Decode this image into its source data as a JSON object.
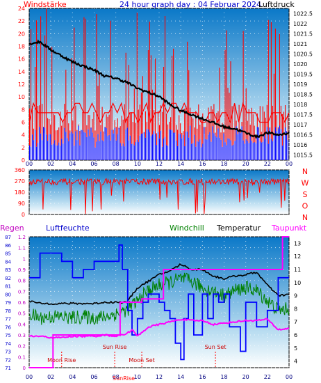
{
  "header": {
    "left": "Windstärke",
    "center": "24 hour graph day : 04 Februar 2024",
    "right": "Luftdruck"
  },
  "colors": {
    "wind": "#ff0000",
    "gust_blue": "#0000ff",
    "pressure": "#000000",
    "humidity": "#0000ff",
    "windchill": "#008000",
    "temperature": "#000000",
    "dewpoint": "#ff00ff",
    "rain": "#ff00ff",
    "panel_top": "#0a78c8",
    "panel_bottom": "#ffffff",
    "red_text": "#ff0000",
    "purple_text": "#c000c0"
  },
  "chart_data": [
    {
      "type": "line",
      "id": "wind-pressure",
      "title": "24 hour graph day : 04 Februar 2024",
      "x_ticks": [
        "00",
        "02",
        "04",
        "06",
        "08",
        "10",
        "12",
        "14",
        "16",
        "18",
        "20",
        "22",
        "00"
      ],
      "left_axis": {
        "label": "Windstärke",
        "ticks": [
          "0",
          "2",
          "4",
          "6",
          "8",
          "10",
          "12",
          "14",
          "16",
          "18",
          "20",
          "22",
          "24"
        ],
        "range": [
          0,
          24
        ]
      },
      "right_axis": {
        "label": "Luftdruck",
        "ticks": [
          "1015.5",
          "1016",
          "1016.5",
          "1017",
          "1017.5",
          "1018",
          "1018.5",
          "1019",
          "1019.5",
          "1020",
          "1020.5",
          "1021",
          "1021.5",
          "1022",
          "1022.5"
        ],
        "range": [
          1015.25,
          1022.75
        ]
      },
      "series": [
        {
          "name": "Luftdruck",
          "axis": "right",
          "x": [
            0,
            1,
            2,
            3,
            4,
            5,
            6,
            7,
            8,
            9,
            10,
            11,
            12,
            13,
            14,
            15,
            16,
            17,
            18,
            19,
            20,
            21,
            22,
            23,
            24
          ],
          "values": [
            1021.0,
            1021.1,
            1020.7,
            1020.4,
            1020.1,
            1019.9,
            1019.7,
            1019.4,
            1019.3,
            1019.1,
            1018.8,
            1018.6,
            1018.4,
            1018.0,
            1017.7,
            1017.5,
            1017.3,
            1017.1,
            1016.9,
            1016.8,
            1016.6,
            1016.4,
            1016.6,
            1016.5,
            1016.6
          ]
        }
      ],
      "wind_typical": [
        4,
        9
      ],
      "gust_max": 24
    },
    {
      "type": "line",
      "id": "wind-direction",
      "left_axis": {
        "ticks": [
          "0",
          "90",
          "180",
          "270",
          "360"
        ],
        "range": [
          0,
          360
        ]
      },
      "right_labels": [
        "N",
        "W",
        "S",
        "O",
        "N"
      ],
      "typical_range": [
        240,
        290
      ]
    },
    {
      "type": "line",
      "id": "climate",
      "legend": [
        "Regen",
        "Luftfeuchte",
        "Windchill",
        "Temperatur",
        "Taupunkt"
      ],
      "x_ticks": [
        "00",
        "02",
        "04",
        "06",
        "08",
        "10",
        "12",
        "14",
        "16",
        "18",
        "20",
        "22",
        "00"
      ],
      "rain_axis": {
        "ticks": [
          "0",
          "0.1",
          "0.2",
          "0.3",
          "0.4",
          "0.5",
          "0.6",
          "0.7",
          "0.8",
          "0.9",
          "1",
          "1.1",
          "1.2"
        ],
        "range": [
          0,
          1.2
        ]
      },
      "humidity_axis": {
        "ticks": [
          "71",
          "72",
          "73",
          "74",
          "75",
          "76",
          "77",
          "78",
          "79",
          "80",
          "81",
          "82",
          "83",
          "84",
          "85",
          "86",
          "87"
        ],
        "range": [
          71,
          87
        ]
      },
      "temperature_axis": {
        "ticks": [
          "4",
          "5",
          "6",
          "7",
          "8",
          "9",
          "10",
          "11",
          "12",
          "13"
        ],
        "range": [
          3.5,
          13.5
        ]
      },
      "series": [
        {
          "name": "Luftfeuchte",
          "x": [
            0,
            1,
            2,
            3,
            4,
            5,
            6,
            7,
            7.8,
            8.3,
            8.6,
            9.1,
            9.5,
            10,
            10.5,
            11,
            11.5,
            12,
            12.5,
            13,
            13.5,
            14,
            14.3,
            14.7,
            15.2,
            16,
            16.5,
            17,
            17.5,
            18,
            18.5,
            19,
            19.5,
            20,
            21,
            22,
            23,
            24
          ],
          "values": [
            82,
            85,
            85,
            84,
            82,
            83,
            84,
            84,
            84,
            86,
            83,
            78,
            75,
            77,
            79,
            80,
            80,
            79,
            78,
            77,
            74,
            72,
            77,
            80,
            75,
            80,
            77,
            80,
            79,
            80,
            76,
            76,
            73,
            79,
            76,
            78,
            82,
            82
          ]
        },
        {
          "name": "Temperatur",
          "x": [
            0,
            1,
            2,
            3,
            4,
            5,
            6,
            7,
            8,
            9,
            10,
            11,
            12,
            13,
            14,
            15,
            16,
            17,
            18,
            19,
            20,
            21,
            22,
            23,
            24
          ],
          "values": [
            8.6,
            8.4,
            8.4,
            8.4,
            8.4,
            8.4,
            8.4,
            8.5,
            8.5,
            8.5,
            9.6,
            10.1,
            10.6,
            10.9,
            11.4,
            11.0,
            11.0,
            10.5,
            10.3,
            10.5,
            10.6,
            10.8,
            9.8,
            9.0,
            9.1
          ]
        },
        {
          "name": "Windchill",
          "x": [
            0,
            1,
            2,
            3,
            4,
            5,
            6,
            7,
            8,
            9,
            10,
            11,
            12,
            13,
            14,
            15,
            16,
            17,
            18,
            19,
            20,
            21,
            22,
            23,
            24
          ],
          "values": [
            7.6,
            7.3,
            7.4,
            7.4,
            7.3,
            7.4,
            7.3,
            7.4,
            7.6,
            7.9,
            8.6,
            9.4,
            9.8,
            10.0,
            10.3,
            10.1,
            9.6,
            9.3,
            9.0,
            9.4,
            9.6,
            9.4,
            8.6,
            7.9,
            8.0
          ]
        },
        {
          "name": "Taupunkt",
          "x": [
            0,
            1,
            2,
            3,
            4,
            5,
            6,
            7,
            8,
            9,
            9.5,
            10,
            11,
            12,
            13,
            14,
            15,
            16,
            17,
            18,
            19,
            20,
            21,
            22,
            23,
            24
          ],
          "values": [
            5.9,
            5.9,
            5.8,
            5.8,
            5.9,
            5.9,
            5.9,
            6.0,
            5.9,
            6.1,
            6.4,
            5.9,
            6.6,
            6.8,
            7.0,
            7.2,
            7.1,
            7.1,
            6.8,
            6.9,
            7.0,
            7.1,
            7.1,
            7.2,
            6.4,
            6.5
          ]
        },
        {
          "name": "Regen",
          "x": [
            0,
            2.2,
            2.2,
            8.4,
            8.4,
            10.4,
            10.4,
            12.4,
            12.4,
            23.4,
            23.4,
            24
          ],
          "values": [
            0,
            0,
            0.3,
            0.3,
            0.6,
            0.6,
            0.63,
            0.63,
            0.9,
            0.9,
            1.2,
            1.2
          ]
        }
      ],
      "annotations": [
        {
          "text": "Moon Rise",
          "x": 3.0
        },
        {
          "text": "Sun Rise",
          "x": 7.9
        },
        {
          "text": "Moon Set",
          "x": 10.4
        },
        {
          "text": "Sun Set",
          "x": 17.2
        }
      ],
      "bottom_label": "SunRise"
    }
  ]
}
